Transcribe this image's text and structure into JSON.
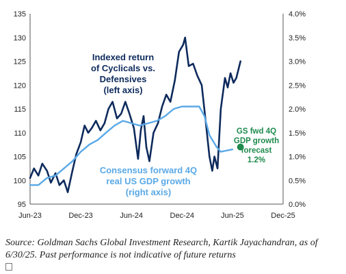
{
  "chart_data": {
    "type": "line",
    "annotations": {
      "cyclicals_label": [
        "Indexed return",
        "of Cyclicals vs.",
        "Defensives",
        "(left axis)"
      ],
      "consensus_label": [
        "Consensus forward 4Q",
        "real US GDP growth",
        "(right axis)"
      ],
      "gs_label": [
        "GS fwd 4Q",
        "GDP growth",
        "forecast",
        "1.2%"
      ]
    },
    "x_axis": {
      "ticks": [
        "Jun-23",
        "Dec-23",
        "Jun-24",
        "Dec-24",
        "Jun-25",
        "Dec-25"
      ],
      "range": [
        "2023-06",
        "2025-12"
      ]
    },
    "y_left": {
      "ticks": [
        95,
        100,
        105,
        110,
        115,
        120,
        125,
        130,
        135
      ],
      "range": [
        95,
        135
      ]
    },
    "y_right": {
      "ticks": [
        "0.0%",
        "0.5%",
        "1.0%",
        "1.5%",
        "2.0%",
        "2.5%",
        "3.0%",
        "3.5%",
        "4.0%"
      ],
      "range": [
        0,
        4.0
      ],
      "unit": "%"
    },
    "series": [
      {
        "axis": "left",
        "color": "#0d2a5c",
        "points": [
          [
            "2023-06-01",
            100.5
          ],
          [
            "2023-06-15",
            102.5
          ],
          [
            "2023-07-01",
            101.0
          ],
          [
            "2023-07-15",
            103.5
          ],
          [
            "2023-08-01",
            102.0
          ],
          [
            "2023-08-15",
            99.5
          ],
          [
            "2023-09-01",
            101.5
          ],
          [
            "2023-09-15",
            99.0
          ],
          [
            "2023-10-01",
            100.0
          ],
          [
            "2023-10-15",
            97.5
          ],
          [
            "2023-11-01",
            102.0
          ],
          [
            "2023-11-15",
            105.5
          ],
          [
            "2023-12-01",
            108.0
          ],
          [
            "2023-12-15",
            111.5
          ],
          [
            "2023-12-28",
            110.0
          ],
          [
            "2024-01-10",
            111.0
          ],
          [
            "2024-01-25",
            112.5
          ],
          [
            "2024-02-10",
            110.5
          ],
          [
            "2024-02-25",
            112.0
          ],
          [
            "2024-03-10",
            115.0
          ],
          [
            "2024-03-25",
            116.5
          ],
          [
            "2024-04-10",
            113.0
          ],
          [
            "2024-04-25",
            114.0
          ],
          [
            "2024-05-10",
            116.5
          ],
          [
            "2024-05-25",
            114.0
          ],
          [
            "2024-06-10",
            111.0
          ],
          [
            "2024-06-25",
            104.5
          ],
          [
            "2024-07-05",
            110.5
          ],
          [
            "2024-07-15",
            113.5
          ],
          [
            "2024-07-25",
            107.0
          ],
          [
            "2024-08-05",
            104.0
          ],
          [
            "2024-08-20",
            110.0
          ],
          [
            "2024-09-05",
            112.0
          ],
          [
            "2024-09-20",
            115.5
          ],
          [
            "2024-10-05",
            118.0
          ],
          [
            "2024-10-20",
            116.5
          ],
          [
            "2024-11-05",
            121.0
          ],
          [
            "2024-11-20",
            127.0
          ],
          [
            "2024-12-05",
            128.5
          ],
          [
            "2024-12-12",
            130.0
          ],
          [
            "2024-12-25",
            124.0
          ],
          [
            "2025-01-10",
            124.5
          ],
          [
            "2025-01-25",
            122.0
          ],
          [
            "2025-02-10",
            120.0
          ],
          [
            "2025-02-25",
            112.0
          ],
          [
            "2025-03-10",
            105.0
          ],
          [
            "2025-03-20",
            102.0
          ],
          [
            "2025-03-28",
            105.0
          ],
          [
            "2025-04-08",
            102.5
          ],
          [
            "2025-04-20",
            115.0
          ],
          [
            "2025-05-05",
            121.5
          ],
          [
            "2025-05-15",
            119.5
          ],
          [
            "2025-05-25",
            122.5
          ],
          [
            "2025-06-05",
            120.5
          ],
          [
            "2025-06-15",
            121.5
          ],
          [
            "2025-06-30",
            125.0
          ]
        ]
      },
      {
        "axis": "right",
        "color": "#5aa9e6",
        "points": [
          [
            "2023-06-01",
            0.4
          ],
          [
            "2023-07-01",
            0.4
          ],
          [
            "2023-08-01",
            0.55
          ],
          [
            "2023-09-01",
            0.6
          ],
          [
            "2023-10-01",
            0.75
          ],
          [
            "2023-11-01",
            0.9
          ],
          [
            "2023-12-01",
            1.1
          ],
          [
            "2024-01-01",
            1.25
          ],
          [
            "2024-02-01",
            1.35
          ],
          [
            "2024-03-01",
            1.5
          ],
          [
            "2024-04-01",
            1.65
          ],
          [
            "2024-05-01",
            1.75
          ],
          [
            "2024-06-01",
            1.7
          ],
          [
            "2024-07-01",
            1.65
          ],
          [
            "2024-08-01",
            1.7
          ],
          [
            "2024-09-01",
            1.75
          ],
          [
            "2024-10-01",
            1.85
          ],
          [
            "2024-11-01",
            2.0
          ],
          [
            "2024-12-01",
            2.05
          ],
          [
            "2025-01-01",
            2.05
          ],
          [
            "2025-02-01",
            2.05
          ],
          [
            "2025-02-20",
            1.85
          ],
          [
            "2025-03-10",
            1.45
          ],
          [
            "2025-04-05",
            1.2
          ],
          [
            "2025-04-20",
            1.1
          ],
          [
            "2025-06-01",
            1.15
          ]
        ]
      }
    ],
    "forecast_point": {
      "date": "2025-06-30",
      "value": 1.2,
      "axis": "right",
      "color": "#1e8a4c"
    }
  },
  "footnote": {
    "line1": "Source: Goldman Sachs Global Investment Research, Kartik Jayachandran,  as of",
    "line2": "6/30/25. Past performance is not indicative of future returns"
  }
}
